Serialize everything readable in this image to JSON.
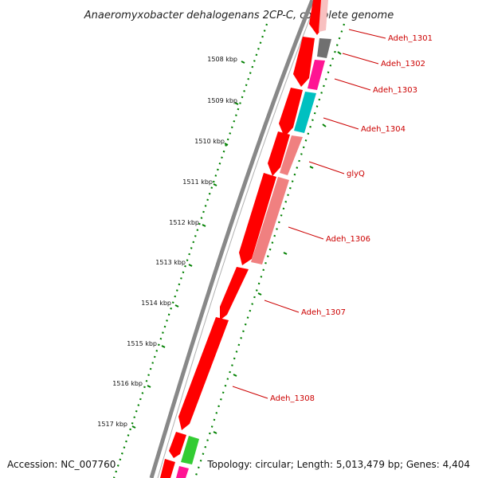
{
  "title": "Anaeromyxobacter dehalogenans 2CP-C, complete genome",
  "footer": {
    "accession": "Accession: NC_007760",
    "topology": "Topology: circular; Length: 5,013,479 bp; Genes: 4,404"
  },
  "scale_labels": [
    "1508 kbp",
    "1509 kbp",
    "1510 kbp",
    "1511 kbp",
    "1512 kbp",
    "1513 kbp",
    "1514 kbp",
    "1515 kbp",
    "1516 kbp",
    "1517 kbp"
  ],
  "gene_labels": [
    "Adeh_1301",
    "Adeh_1302",
    "Adeh_1303",
    "Adeh_1304",
    "glyQ",
    "Adeh_1306",
    "Adeh_1307",
    "Adeh_1308"
  ],
  "colors": {
    "backbone": "#888888",
    "gene_red": "#ff0000",
    "gene_pink": "#f08080",
    "gene_magenta": "#ff1493",
    "gene_cyan": "#00c0c0",
    "gene_gray": "#707070",
    "gene_green": "#33cc33",
    "tick_green": "#008000",
    "label_red": "#cc0000"
  }
}
